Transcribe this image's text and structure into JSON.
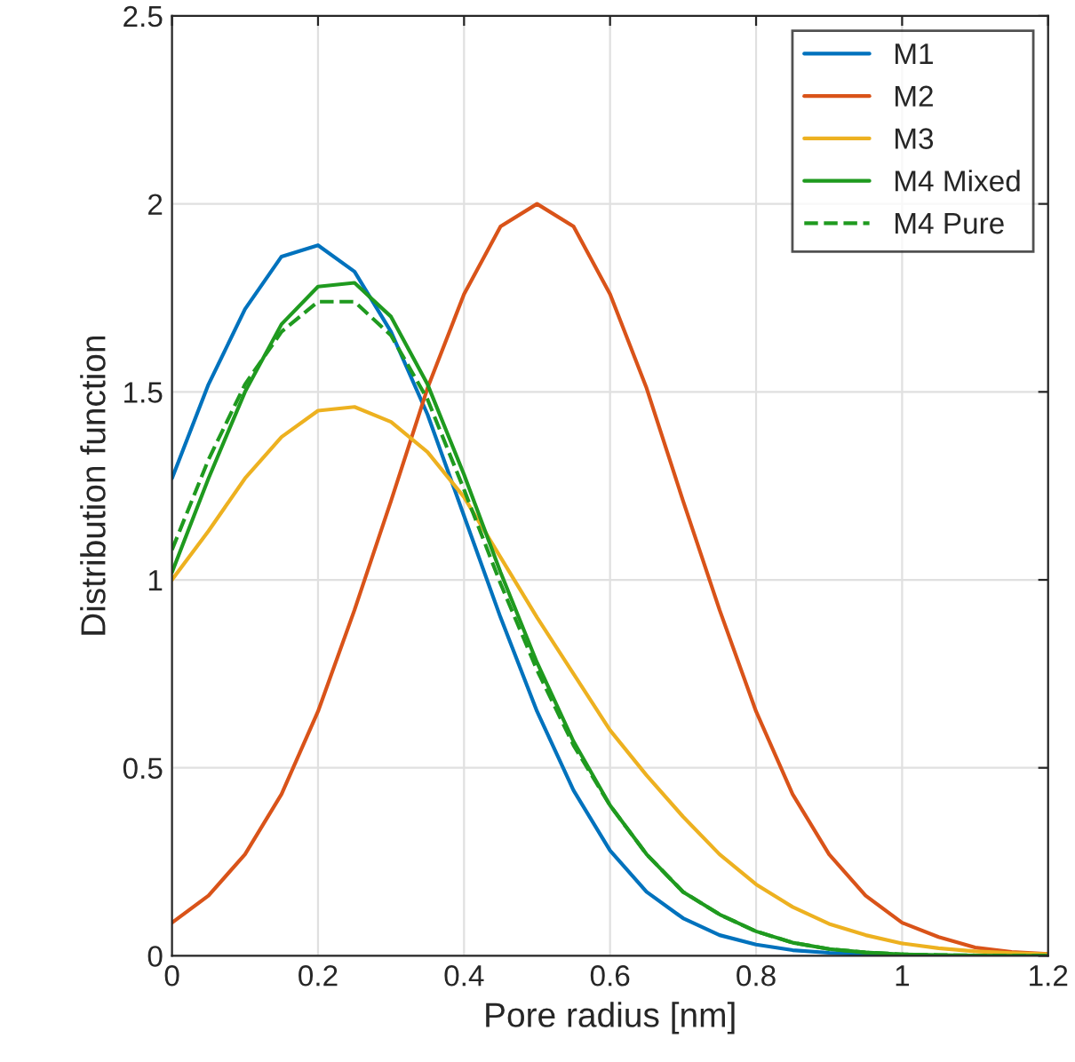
{
  "chart_data": {
    "type": "line",
    "xlabel": "Pore radius [nm]",
    "ylabel": "Distribution function",
    "x": [
      0,
      0.05,
      0.1,
      0.15,
      0.2,
      0.25,
      0.3,
      0.35,
      0.4,
      0.45,
      0.5,
      0.55,
      0.6,
      0.65,
      0.7,
      0.75,
      0.8,
      0.85,
      0.9,
      0.95,
      1.0,
      1.05,
      1.1,
      1.15,
      1.2
    ],
    "series": [
      {
        "name": "M1",
        "color": "#0072bd",
        "line_style": "solid",
        "values": [
          1.27,
          1.52,
          1.72,
          1.86,
          1.89,
          1.82,
          1.66,
          1.44,
          1.17,
          0.9,
          0.65,
          0.44,
          0.28,
          0.17,
          0.1,
          0.055,
          0.03,
          0.015,
          0.008,
          0.004,
          0.002,
          null,
          null,
          null,
          null
        ]
      },
      {
        "name": "M2",
        "color": "#d95319",
        "line_style": "solid",
        "values": [
          0.088,
          0.16,
          0.27,
          0.43,
          0.65,
          0.92,
          1.21,
          1.51,
          1.76,
          1.94,
          2.0,
          1.94,
          1.76,
          1.51,
          1.21,
          0.92,
          0.65,
          0.43,
          0.27,
          0.16,
          0.088,
          0.05,
          0.022,
          0.01,
          0.005
        ]
      },
      {
        "name": "M3",
        "color": "#edb120",
        "line_style": "solid",
        "values": [
          1.0,
          1.13,
          1.27,
          1.38,
          1.45,
          1.46,
          1.42,
          1.34,
          1.22,
          1.06,
          0.9,
          0.75,
          0.6,
          0.48,
          0.37,
          0.27,
          0.19,
          0.13,
          0.085,
          0.055,
          0.033,
          0.02,
          0.012,
          0.007,
          0.004
        ]
      },
      {
        "name": "M4 Mixed",
        "color": "#1f9a1f",
        "line_style": "solid",
        "values": [
          1.02,
          1.27,
          1.5,
          1.68,
          1.78,
          1.79,
          1.7,
          1.52,
          1.28,
          1.02,
          0.78,
          0.57,
          0.4,
          0.27,
          0.17,
          0.11,
          0.065,
          0.035,
          0.018,
          0.009,
          0.004,
          0.002,
          0.001,
          0,
          0
        ]
      },
      {
        "name": "M4 Pure",
        "color": "#1f9a1f",
        "line_style": "dashed",
        "values": [
          1.08,
          1.32,
          1.52,
          1.66,
          1.74,
          1.74,
          1.65,
          1.48,
          1.24,
          0.99,
          0.76,
          0.56,
          0.4,
          0.27,
          0.17,
          0.11,
          0.065,
          0.035,
          0.018,
          0.009,
          0.004,
          0.002,
          0.001,
          0,
          0
        ]
      }
    ],
    "xlim": [
      0,
      1.2
    ],
    "ylim": [
      0,
      2.5
    ],
    "xticks": [
      0,
      0.2,
      0.4,
      0.6,
      0.8,
      1,
      1.2
    ],
    "yticks": [
      0,
      0.5,
      1,
      1.5,
      2,
      2.5
    ],
    "grid": true,
    "legend": "top right"
  }
}
